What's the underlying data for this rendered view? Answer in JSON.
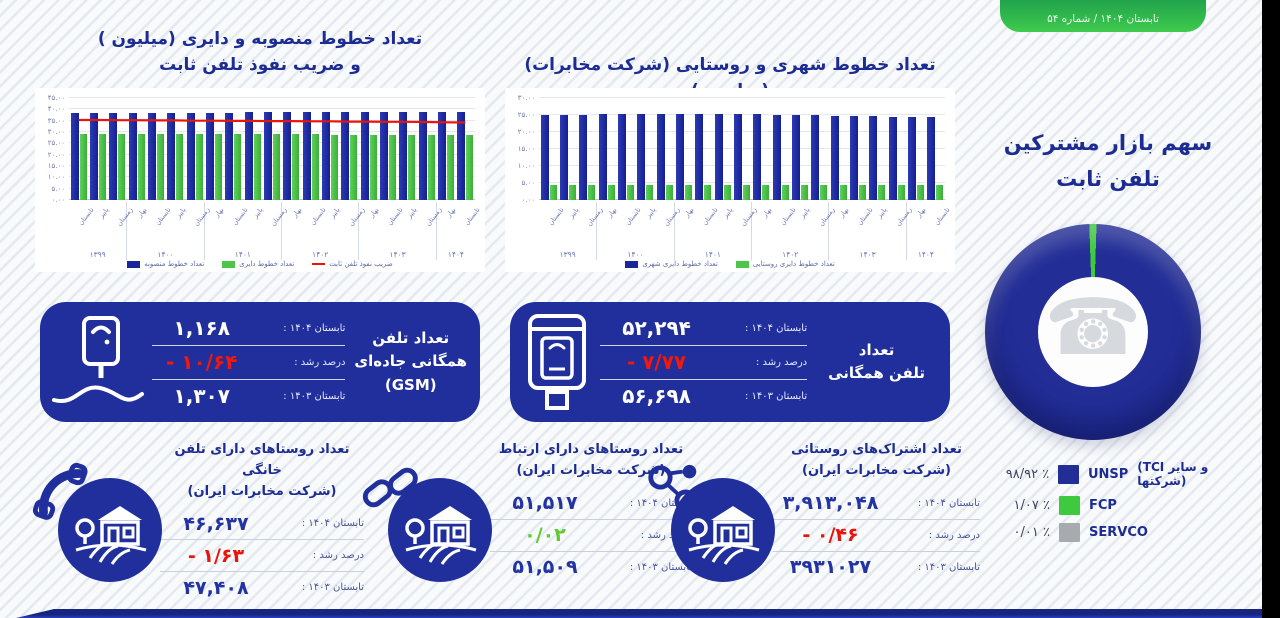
{
  "header": {
    "issue_badge": "تابستان ۱۴۰۴ / شماره ۵۴"
  },
  "colors": {
    "navy": "#202f9b",
    "bar_blue": "#1b259c",
    "green": "#4cc648",
    "donut_green": "#3fc93f",
    "red": "#e9140a",
    "gray": "#a7abb0",
    "title_navy": "#1c2c92"
  },
  "chart_data": [
    {
      "type": "bar",
      "title": "تعداد خطوط منصوبه و دایری (میلیون )",
      "title_line2": "و ضریب نفوذ تلفن ثابت",
      "ylim": [
        0,
        45
      ],
      "yticks": [
        "۴۵.۰۰",
        "۴۰.۰۰",
        "۳۵.۰۰",
        "۳۰.۰۰",
        "۲۵.۰۰",
        "۲۰.۰۰",
        "۱۵.۰۰",
        "۱۰.۰۰",
        "۵.۰۰",
        "۰.۰۰"
      ],
      "categories": [
        "تابستان",
        "پاییز",
        "زمستان",
        "بهار",
        "تابستان",
        "پاییز",
        "زمستان",
        "بهار",
        "تابستان",
        "پاییز",
        "زمستان",
        "بهار",
        "تابستان",
        "پاییز",
        "زمستان",
        "بهار",
        "تابستان",
        "پاییز",
        "زمستان",
        "بهار",
        "تابستان"
      ],
      "year_groups": [
        {
          "label": "۱۳۹۹",
          "count": 3
        },
        {
          "label": "۱۴۰۰",
          "count": 4
        },
        {
          "label": "۱۴۰۱",
          "count": 4
        },
        {
          "label": "۱۴۰۲",
          "count": 4
        },
        {
          "label": "۱۴۰۳",
          "count": 4
        },
        {
          "label": "۱۴۰۴",
          "count": 2
        }
      ],
      "series": [
        {
          "name": "تعداد خطوط منصوبه",
          "kind": "bar",
          "color": "#1b259c",
          "values": [
            38.3,
            38.4,
            38.4,
            38.5,
            38.5,
            38.5,
            38.6,
            38.6,
            38.6,
            38.7,
            38.7,
            38.7,
            38.8,
            38.8,
            38.8,
            38.8,
            38.9,
            38.9,
            38.9,
            38.9,
            38.9
          ]
        },
        {
          "name": "تعداد خطوط دایری",
          "kind": "bar",
          "color": "#4cc648",
          "values": [
            29.0,
            29.0,
            29.0,
            29.0,
            29.0,
            29.1,
            29.1,
            29.1,
            29.1,
            29.1,
            29.0,
            29.0,
            29.0,
            28.9,
            28.9,
            28.8,
            28.8,
            28.7,
            28.7,
            28.6,
            28.5
          ]
        },
        {
          "name": "ضریب نفوذ تلفن ثابت",
          "kind": "line",
          "color": "#e9140a",
          "values": [
            35.3,
            35.3,
            35.2,
            35.2,
            35.1,
            35.1,
            35.0,
            35.0,
            34.9,
            34.9,
            34.8,
            34.8,
            34.7,
            34.7,
            34.6,
            34.6,
            34.5,
            34.5,
            34.4,
            34.3,
            34.2
          ]
        }
      ],
      "legend_position": "bottom",
      "grid": true
    },
    {
      "type": "bar",
      "title": "تعداد خطوط شهری و روستایی (شرکت مخابرات) (میلیون )",
      "ylim": [
        0,
        30
      ],
      "yticks": [
        "۳۰.۰۰",
        "۲۵.۰۰",
        "۲۰.۰۰",
        "۱۵.۰۰",
        "۱۰.۰۰",
        "۵.۰۰",
        "۰.۰۰"
      ],
      "categories": [
        "تابستان",
        "پاییز",
        "زمستان",
        "بهار",
        "تابستان",
        "پاییز",
        "زمستان",
        "بهار",
        "تابستان",
        "پاییز",
        "زمستان",
        "بهار",
        "تابستان",
        "پاییز",
        "زمستان",
        "بهار",
        "تابستان",
        "پاییز",
        "زمستان",
        "بهار",
        "تابستان"
      ],
      "year_groups": [
        {
          "label": "۱۳۹۹",
          "count": 3
        },
        {
          "label": "۱۴۰۰",
          "count": 4
        },
        {
          "label": "۱۴۰۱",
          "count": 4
        },
        {
          "label": "۱۴۰۲",
          "count": 4
        },
        {
          "label": "۱۴۰۳",
          "count": 4
        },
        {
          "label": "۱۴۰۴",
          "count": 2
        }
      ],
      "series": [
        {
          "name": "تعداد خطوط دایری شهری",
          "kind": "bar",
          "color": "#1b259c",
          "values": [
            25.0,
            25.1,
            25.1,
            25.2,
            25.2,
            25.2,
            25.3,
            25.3,
            25.3,
            25.3,
            25.2,
            25.2,
            25.1,
            25.0,
            24.9,
            24.8,
            24.7,
            24.6,
            24.5,
            24.4,
            24.3
          ]
        },
        {
          "name": "تعداد خطوط دایری روستایی",
          "kind": "bar",
          "color": "#4cc648",
          "values": [
            4.3,
            4.3,
            4.3,
            4.3,
            4.3,
            4.3,
            4.3,
            4.3,
            4.3,
            4.3,
            4.3,
            4.3,
            4.3,
            4.3,
            4.3,
            4.3,
            4.3,
            4.3,
            4.3,
            4.3,
            4.3
          ]
        }
      ],
      "legend_position": "bottom",
      "grid": true
    },
    {
      "type": "pie",
      "title_line1": "سهم بازار مشترکین",
      "title_line2": "تلفن ثابت",
      "center_icon": "telephone-icon",
      "slices": [
        {
          "label": "UNSP",
          "note": "(TCI و سایر شرکتها)",
          "value": 98.92,
          "display": "۹۸/۹۲ ٪",
          "color": "#222d96"
        },
        {
          "label": "FCP",
          "note": "",
          "value": 1.07,
          "display": "۱/۰۷ ٪",
          "color": "#3fc93f"
        },
        {
          "label": "SERVCO",
          "note": "",
          "value": 0.01,
          "display": "۰/۰۱ ٪",
          "color": "#a7abb0"
        }
      ],
      "legend_position": "bottom-right"
    }
  ],
  "stat_boxes": [
    {
      "icon": "road-payphone-icon",
      "title_lines": [
        "تعداد تلفن",
        "همگانی جاده‌ای",
        "(GSM)"
      ],
      "rows": [
        {
          "label": "تابستان ۱۴۰۴ :",
          "value": "۱,۱۶۸",
          "tone": "normal"
        },
        {
          "label": "درصد رشد :",
          "value": "- ۱۰/۶۴",
          "tone": "negative"
        },
        {
          "label": "تابستان ۱۴۰۳ :",
          "value": "۱,۳۰۷",
          "tone": "normal"
        }
      ]
    },
    {
      "icon": "payphone-kiosk-icon",
      "title_lines": [
        "تعداد",
        "تلفن همگانی",
        ""
      ],
      "rows": [
        {
          "label": "تابستان ۱۴۰۴ :",
          "value": "۵۲,۲۹۴",
          "tone": "normal"
        },
        {
          "label": "درصد رشد :",
          "value": "- ۷/۷۷",
          "tone": "negative"
        },
        {
          "label": "تابستان ۱۴۰۳ :",
          "value": "۵۶,۶۹۸",
          "tone": "normal"
        }
      ]
    }
  ],
  "village_stats": [
    {
      "badge_icon": "handset-icon",
      "title": "تعداد روستاهای دارای تلفن خانگی",
      "subtitle": "(شرکت مخابرات ایران)",
      "rows": [
        {
          "label": "تابستان ۱۴۰۴ :",
          "value": "۴۶,۶۳۷",
          "tone": "normal"
        },
        {
          "label": "درصد رشد :",
          "value": "- ۱/۶۳",
          "tone": "negative"
        },
        {
          "label": "تابستان ۱۴۰۳ :",
          "value": "۴۷,۴۰۸",
          "tone": "normal"
        }
      ]
    },
    {
      "badge_icon": "chain-link-icon",
      "title": "تعداد روستاهای دارای ارتباط",
      "subtitle": "(شرکت مخابرات ایران)",
      "rows": [
        {
          "label": "تابستان ۱۴۰۴ :",
          "value": "۵۱,۵۱۷",
          "tone": "normal"
        },
        {
          "label": "درصد رشد :",
          "value": "۰/۰۲",
          "tone": "positive"
        },
        {
          "label": "تابستان ۱۴۰۳ :",
          "value": "۵۱,۵۰۹",
          "tone": "normal"
        }
      ]
    },
    {
      "badge_icon": "network-icon",
      "title": "تعداد اشتراک‌های روستائی",
      "subtitle": "(شرکت مخابرات ایران)",
      "rows": [
        {
          "label": "تابستان ۱۴۰۴ :",
          "value": "۳,۹۱۳,۰۴۸",
          "tone": "normal"
        },
        {
          "label": "درصد رشد :",
          "value": "- ۰/۴۶",
          "tone": "negative"
        },
        {
          "label": "تابستان ۱۴۰۳ :",
          "value": "۳۹۳۱۰۲۷",
          "tone": "normal"
        }
      ]
    }
  ]
}
